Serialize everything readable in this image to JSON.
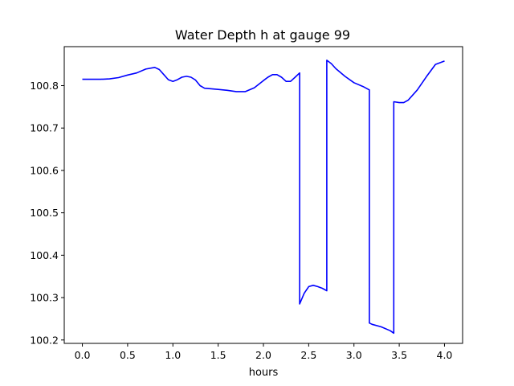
{
  "chart_data": {
    "type": "line",
    "title": "Water Depth h at gauge 99",
    "xlabel": "hours",
    "ylabel": "",
    "xlim": [
      -0.2,
      4.2
    ],
    "ylim": [
      100.192,
      100.892
    ],
    "x_ticks": [
      0.0,
      0.5,
      1.0,
      1.5,
      2.0,
      2.5,
      3.0,
      3.5,
      4.0
    ],
    "x_tick_labels": [
      "0.0",
      "0.5",
      "1.0",
      "1.5",
      "2.0",
      "2.5",
      "3.0",
      "3.5",
      "4.0"
    ],
    "y_ticks": [
      100.2,
      100.3,
      100.4,
      100.5,
      100.6,
      100.7,
      100.8
    ],
    "y_tick_labels": [
      "100.2",
      "100.3",
      "100.4",
      "100.5",
      "100.6",
      "100.7",
      "100.8"
    ],
    "grid": false,
    "series": [
      {
        "color": "#0000ff",
        "x": [
          0.0,
          0.1,
          0.2,
          0.3,
          0.4,
          0.5,
          0.6,
          0.7,
          0.8,
          0.85,
          0.9,
          0.95,
          1.0,
          1.05,
          1.1,
          1.15,
          1.2,
          1.25,
          1.3,
          1.35,
          1.4,
          1.5,
          1.6,
          1.7,
          1.8,
          1.9,
          2.0,
          2.05,
          2.1,
          2.15,
          2.2,
          2.25,
          2.3,
          2.35,
          2.4,
          2.4,
          2.45,
          2.5,
          2.55,
          2.6,
          2.65,
          2.7,
          2.7,
          2.75,
          2.8,
          2.9,
          3.0,
          3.1,
          3.17,
          3.17,
          3.2,
          3.3,
          3.4,
          3.44,
          3.44,
          3.5,
          3.55,
          3.6,
          3.7,
          3.8,
          3.9,
          4.0
        ],
        "y": [
          100.815,
          100.815,
          100.815,
          100.816,
          100.819,
          100.825,
          100.83,
          100.839,
          100.843,
          100.838,
          100.826,
          100.814,
          100.81,
          100.814,
          100.82,
          100.822,
          100.82,
          100.813,
          100.8,
          100.794,
          100.793,
          100.791,
          100.789,
          100.786,
          100.786,
          100.795,
          100.812,
          100.82,
          100.826,
          100.826,
          100.82,
          100.81,
          100.81,
          100.82,
          100.83,
          100.285,
          100.31,
          100.326,
          100.329,
          100.326,
          100.322,
          100.316,
          100.86,
          100.852,
          100.84,
          100.822,
          100.807,
          100.798,
          100.79,
          100.24,
          100.237,
          100.231,
          100.222,
          100.216,
          100.762,
          100.76,
          100.76,
          100.766,
          100.79,
          100.821,
          100.85,
          100.858
        ]
      }
    ]
  }
}
